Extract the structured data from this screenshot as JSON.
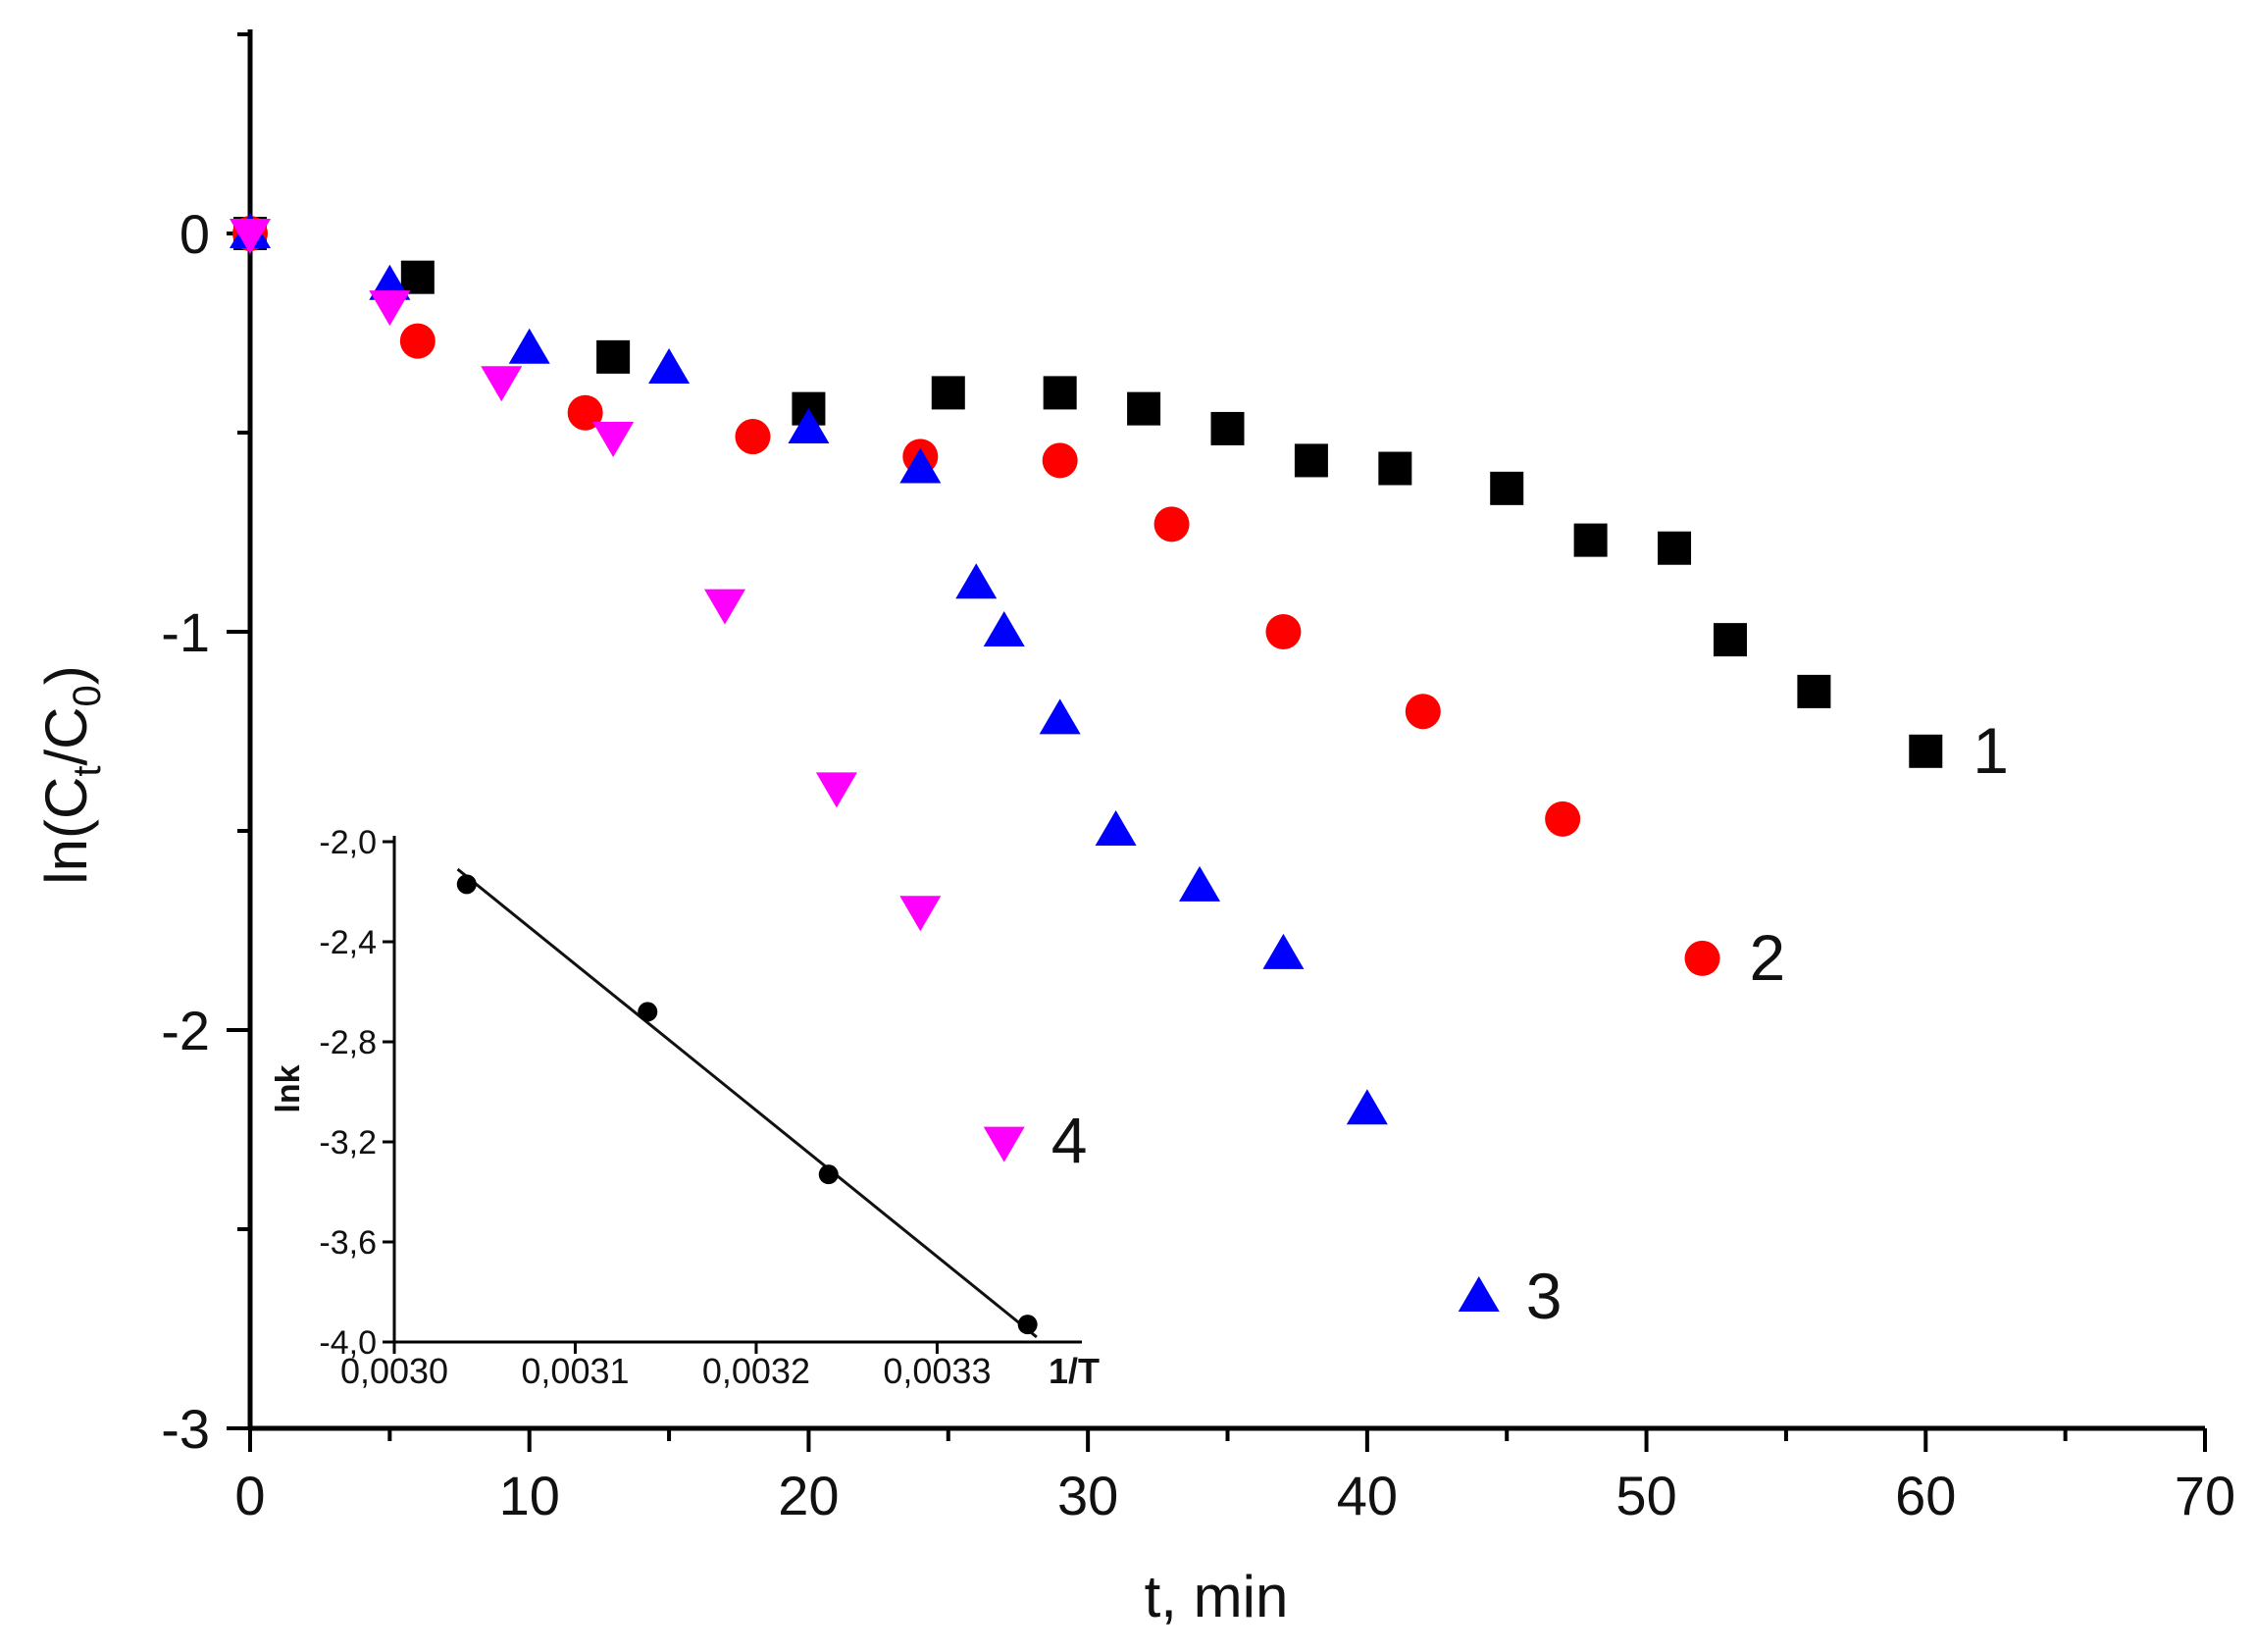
{
  "chart_data": {
    "type": "scatter",
    "xlabel": "t, min",
    "ylabel": {
      "base": "ln(C",
      "sub1": "t",
      "mid": "/C",
      "sub2": "0",
      "end": ")"
    },
    "xlim": [
      0,
      70
    ],
    "ylim": [
      -3,
      0.5
    ],
    "xticks": [
      0,
      10,
      20,
      30,
      40,
      50,
      60,
      70
    ],
    "xtick_labels": [
      "0",
      "10",
      "20",
      "30",
      "40",
      "50",
      "60",
      "70"
    ],
    "yticks": [
      0,
      -1,
      -2,
      -3
    ],
    "ytick_labels": [
      "0",
      "-1",
      "-2",
      "-3"
    ],
    "series": [
      {
        "name": "1",
        "marker": "square",
        "color": "#000000",
        "x": [
          0,
          6,
          13,
          20,
          25,
          29,
          32,
          35,
          38,
          41,
          45,
          48,
          51,
          53,
          56,
          60
        ],
        "y": [
          0,
          -0.11,
          -0.31,
          -0.44,
          -0.4,
          -0.4,
          -0.44,
          -0.49,
          -0.57,
          -0.59,
          -0.64,
          -0.77,
          -0.79,
          -1.02,
          -1.15,
          -1.3
        ]
      },
      {
        "name": "2",
        "marker": "circle",
        "color": "#ff0000",
        "x": [
          0,
          6,
          12,
          18,
          24,
          29,
          33,
          37,
          42,
          47,
          52
        ],
        "y": [
          0,
          -0.27,
          -0.45,
          -0.51,
          -0.56,
          -0.57,
          -0.73,
          -1.0,
          -1.2,
          -1.47,
          -1.82
        ]
      },
      {
        "name": "3",
        "marker": "triangle-up",
        "color": "#0000ff",
        "x": [
          0,
          5,
          10,
          15,
          20,
          24,
          26,
          27,
          29,
          31,
          34,
          37,
          40,
          44
        ],
        "y": [
          0,
          -0.13,
          -0.29,
          -0.34,
          -0.49,
          -0.59,
          -0.88,
          -1.0,
          -1.22,
          -1.5,
          -1.64,
          -1.81,
          -2.2,
          -2.67
        ]
      },
      {
        "name": "4",
        "marker": "triangle-down",
        "color": "#ff00ff",
        "x": [
          0,
          5,
          9,
          13,
          17,
          21,
          24,
          27
        ],
        "y": [
          0,
          -0.18,
          -0.37,
          -0.51,
          -0.93,
          -1.39,
          -1.7,
          -2.28
        ]
      }
    ],
    "inset": {
      "xlabel": "1/T",
      "ylabel": "lnk",
      "xlim": [
        0.003,
        0.00338
      ],
      "ylim": [
        -4.0,
        -2.0
      ],
      "xticks": [
        0.003,
        0.0031,
        0.0032,
        0.0033
      ],
      "xtick_labels": [
        "0,0030",
        "0,0031",
        "0,0032",
        "0,0033"
      ],
      "yticks": [
        -2.0,
        -2.4,
        -2.8,
        -3.2,
        -3.6,
        -4.0
      ],
      "ytick_labels": [
        "-2,0",
        "-2,4",
        "-2,8",
        "-3,2",
        "-3,6",
        "-4,0"
      ],
      "points": {
        "x": [
          0.00304,
          0.00314,
          0.00324,
          0.00335
        ],
        "y": [
          -2.17,
          -2.68,
          -3.33,
          -3.93
        ]
      },
      "fit_line": {
        "x": [
          0.003035,
          0.003355
        ],
        "y": [
          -2.11,
          -3.98
        ]
      }
    }
  }
}
